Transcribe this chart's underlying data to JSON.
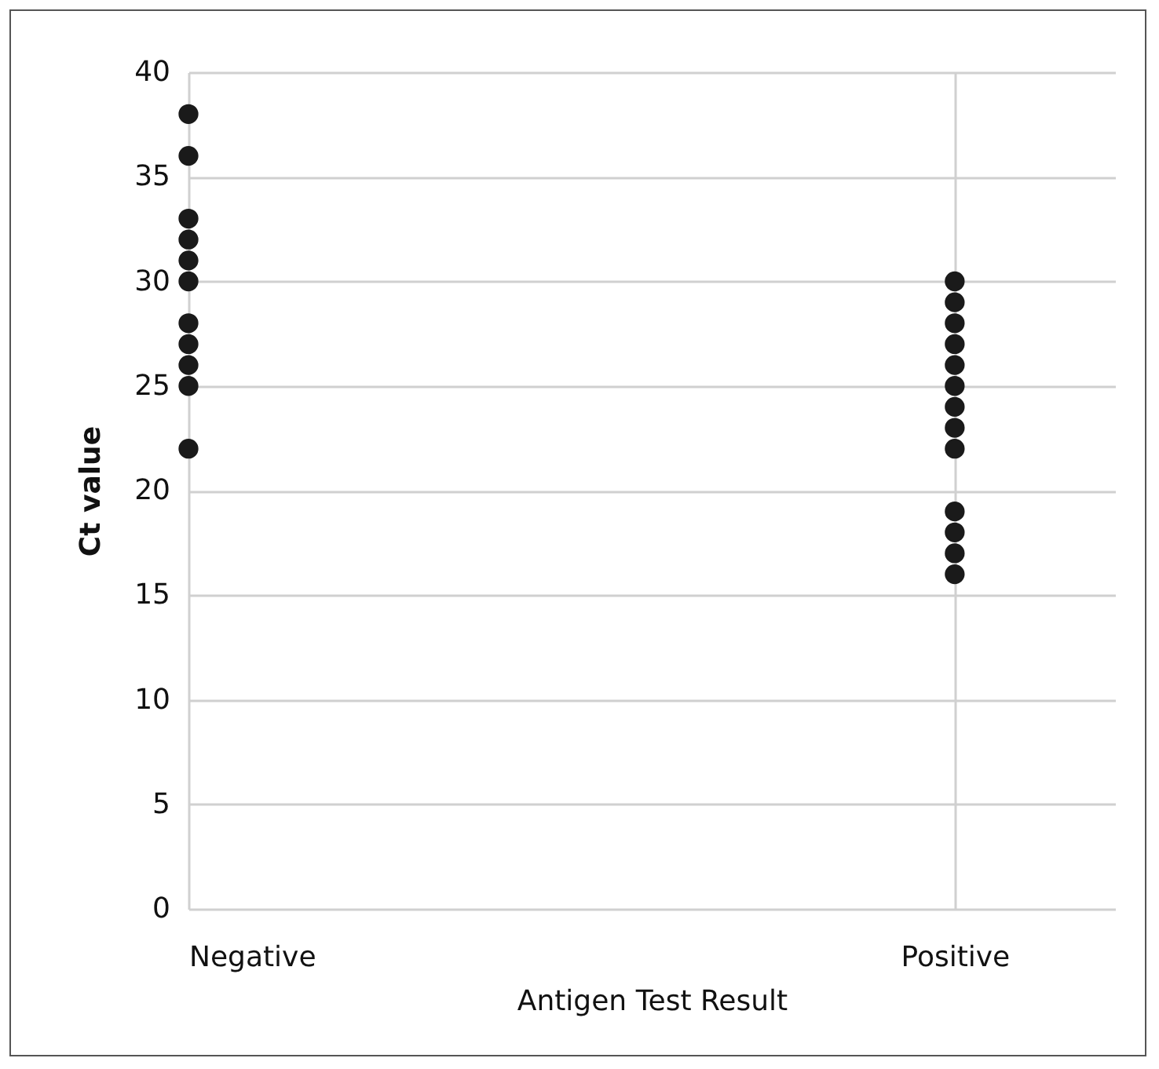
{
  "chart_data": {
    "type": "scatter",
    "xlabel": "Antigen Test Result",
    "ylabel": "Ct value",
    "categories": [
      "Negative",
      "Positive"
    ],
    "series": [
      {
        "color": "#1a1a1a",
        "x": [
          "Negative",
          "Negative",
          "Negative",
          "Negative",
          "Negative",
          "Negative",
          "Negative",
          "Negative",
          "Negative",
          "Negative",
          "Negative",
          "Positive",
          "Positive",
          "Positive",
          "Positive",
          "Positive",
          "Positive",
          "Positive",
          "Positive",
          "Positive",
          "Positive",
          "Positive",
          "Positive",
          "Positive"
        ],
        "values": [
          38,
          36,
          33,
          32,
          31,
          30,
          28,
          27,
          26,
          25,
          22,
          30,
          29,
          28,
          27,
          26,
          25,
          24,
          23,
          22,
          19,
          18,
          17,
          16
        ]
      }
    ],
    "ylim": [
      0,
      40
    ],
    "yticks": [
      0,
      5,
      10,
      15,
      20,
      25,
      30,
      35,
      40
    ],
    "grid": true,
    "marker": "circle",
    "legend": false
  }
}
